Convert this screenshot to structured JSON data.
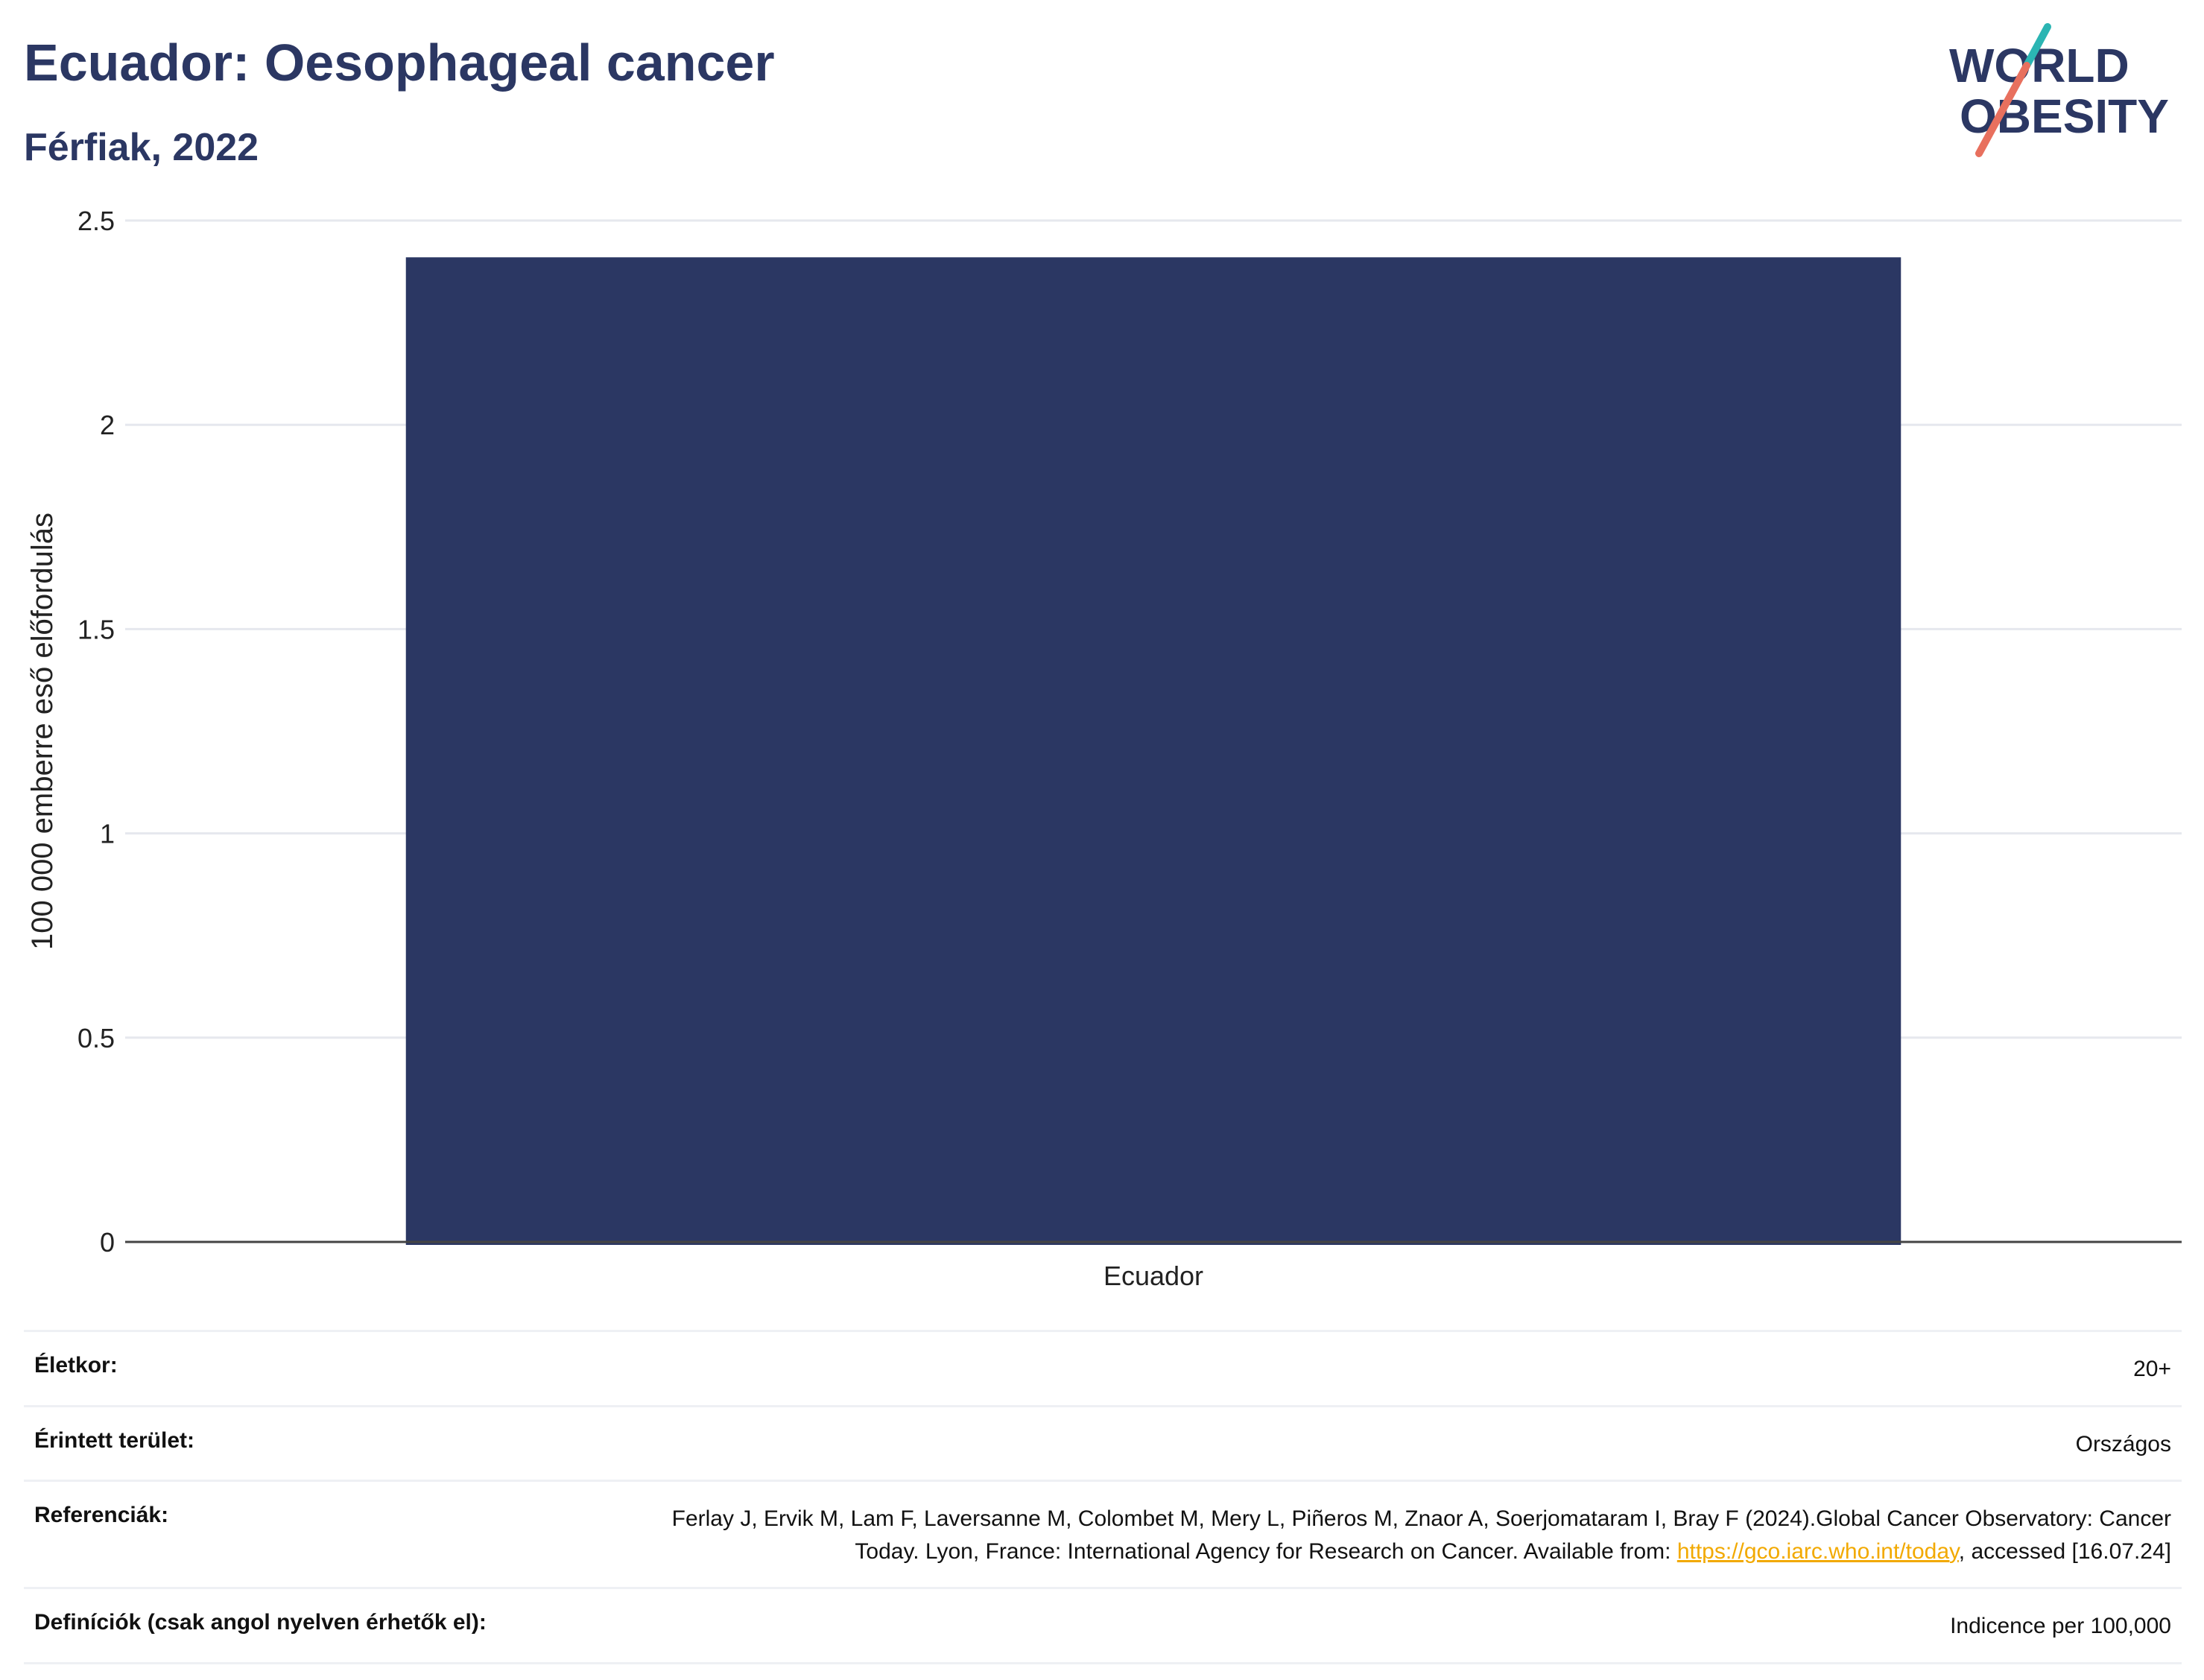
{
  "header": {
    "title": "Ecuador: Oesophageal cancer",
    "subtitle": "Férfiak, 2022"
  },
  "logo": {
    "line1": "WORLD",
    "line2": "OBESITY",
    "colors": {
      "text": "#2b3763",
      "slash_top": "#2bb5b3",
      "slash_bottom": "#e8705e"
    }
  },
  "chart_data": {
    "type": "bar",
    "categories": [
      "Ecuador"
    ],
    "values": [
      2.41
    ],
    "title": "Ecuador: Oesophageal cancer",
    "subtitle": "Férfiak, 2022",
    "xlabel": "",
    "ylabel": "100 000 emberre eső előfordulás",
    "ylim": [
      0,
      2.5
    ],
    "yticks": [
      0,
      0.5,
      1,
      1.5,
      2,
      2.5
    ],
    "ytick_labels": [
      "0",
      "0.5",
      "1",
      "1.5",
      "2",
      "2.5"
    ],
    "grid": true,
    "bar_color": "#2b3763",
    "grid_color": "#e6e8ee"
  },
  "meta": {
    "age_label": "Életkor:",
    "age_value": "20+",
    "area_label": "Érintett terület:",
    "area_value": "Országos",
    "ref_label": "Referenciák:",
    "ref_text_1": "Ferlay J, Ervik M, Lam F, Laversanne M, Colombet M, Mery L, Piñeros M, Znaor A, Soerjomataram I, Bray F (2024).Global Cancer Observatory: Cancer Today. Lyon, France: International Agency for Research on Cancer. Available from: ",
    "ref_link": "https://gco.iarc.who.int/today",
    "ref_text_2": ", accessed [16.07.24]",
    "def_label": "Definíciók (csak angol nyelven érhetők el):",
    "def_value": "Indicence per 100,000"
  }
}
